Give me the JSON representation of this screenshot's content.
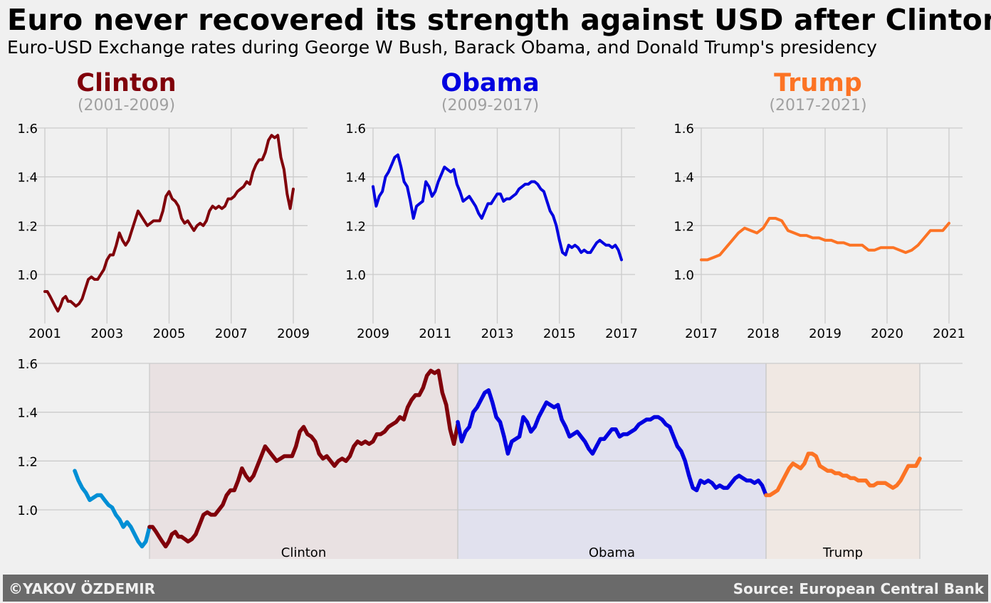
{
  "header": {
    "title": "Euro never recovered its strength against USD after Clinton",
    "subtitle": "Euro-USD Exchange rates during George W Bush, Barack Obama, and Donald Trump's presidency"
  },
  "footer": {
    "credit": "©YAKOV ÖZDEMIR",
    "source": "Source: European Central Bank"
  },
  "colors": {
    "background": "#f0f0f0",
    "grid": "#cbcbcb",
    "period_label": "#a0a0a0",
    "pre_period": "#008fd5",
    "footer_bg": "#6a6a6a"
  },
  "chart_data": [
    {
      "type": "line",
      "panel": "clinton",
      "title": "Clinton",
      "subtitle": "(2001-2009)",
      "color": "#80000a",
      "xlim": [
        2001,
        2009
      ],
      "ylim": [
        0.8,
        1.6
      ],
      "xticks": [
        2001,
        2003,
        2005,
        2007,
        2009
      ],
      "yticks": [
        1.0,
        1.2,
        1.4,
        1.6
      ],
      "x": [
        2001.0,
        2001.08,
        2001.17,
        2001.25,
        2001.33,
        2001.42,
        2001.5,
        2001.58,
        2001.67,
        2001.75,
        2001.83,
        2001.92,
        2002.0,
        2002.1,
        2002.2,
        2002.3,
        2002.4,
        2002.5,
        2002.6,
        2002.7,
        2002.8,
        2002.9,
        2003.0,
        2003.1,
        2003.2,
        2003.3,
        2003.4,
        2003.5,
        2003.6,
        2003.7,
        2003.8,
        2003.9,
        2004.0,
        2004.1,
        2004.2,
        2004.3,
        2004.4,
        2004.5,
        2004.6,
        2004.7,
        2004.8,
        2004.9,
        2005.0,
        2005.1,
        2005.2,
        2005.3,
        2005.4,
        2005.5,
        2005.6,
        2005.7,
        2005.8,
        2005.9,
        2006.0,
        2006.1,
        2006.2,
        2006.3,
        2006.4,
        2006.5,
        2006.6,
        2006.7,
        2006.8,
        2006.9,
        2007.0,
        2007.1,
        2007.2,
        2007.3,
        2007.4,
        2007.5,
        2007.6,
        2007.7,
        2007.8,
        2007.9,
        2008.0,
        2008.1,
        2008.2,
        2008.3,
        2008.4,
        2008.5,
        2008.6,
        2008.7,
        2008.8,
        2008.9,
        2009.0
      ],
      "y": [
        0.93,
        0.93,
        0.91,
        0.89,
        0.87,
        0.85,
        0.87,
        0.9,
        0.91,
        0.89,
        0.89,
        0.88,
        0.87,
        0.88,
        0.9,
        0.94,
        0.98,
        0.99,
        0.98,
        0.98,
        1.0,
        1.02,
        1.06,
        1.08,
        1.08,
        1.12,
        1.17,
        1.14,
        1.12,
        1.14,
        1.18,
        1.22,
        1.26,
        1.24,
        1.22,
        1.2,
        1.21,
        1.22,
        1.22,
        1.22,
        1.26,
        1.32,
        1.34,
        1.31,
        1.3,
        1.28,
        1.23,
        1.21,
        1.22,
        1.2,
        1.18,
        1.2,
        1.21,
        1.2,
        1.22,
        1.26,
        1.28,
        1.27,
        1.28,
        1.27,
        1.28,
        1.31,
        1.31,
        1.32,
        1.34,
        1.35,
        1.36,
        1.38,
        1.37,
        1.42,
        1.45,
        1.47,
        1.47,
        1.5,
        1.55,
        1.57,
        1.56,
        1.57,
        1.48,
        1.43,
        1.33,
        1.27,
        1.35
      ]
    },
    {
      "type": "line",
      "panel": "obama",
      "title": "Obama",
      "subtitle": "(2009-2017)",
      "color": "#0000e0",
      "xlim": [
        2009,
        2017
      ],
      "ylim": [
        0.8,
        1.6
      ],
      "xticks": [
        2009,
        2011,
        2013,
        2015,
        2017
      ],
      "yticks": [
        1.0,
        1.2,
        1.4,
        1.6
      ],
      "x": [
        2009.0,
        2009.1,
        2009.2,
        2009.3,
        2009.4,
        2009.5,
        2009.6,
        2009.7,
        2009.8,
        2009.9,
        2010.0,
        2010.1,
        2010.2,
        2010.3,
        2010.4,
        2010.5,
        2010.6,
        2010.7,
        2010.8,
        2010.9,
        2011.0,
        2011.1,
        2011.2,
        2011.3,
        2011.4,
        2011.5,
        2011.6,
        2011.7,
        2011.8,
        2011.9,
        2012.0,
        2012.1,
        2012.2,
        2012.3,
        2012.4,
        2012.5,
        2012.6,
        2012.7,
        2012.8,
        2012.9,
        2013.0,
        2013.1,
        2013.2,
        2013.3,
        2013.4,
        2013.5,
        2013.6,
        2013.7,
        2013.8,
        2013.9,
        2014.0,
        2014.1,
        2014.2,
        2014.3,
        2014.4,
        2014.5,
        2014.6,
        2014.7,
        2014.8,
        2014.9,
        2015.0,
        2015.1,
        2015.2,
        2015.3,
        2015.4,
        2015.5,
        2015.6,
        2015.7,
        2015.8,
        2015.9,
        2016.0,
        2016.1,
        2016.2,
        2016.3,
        2016.4,
        2016.5,
        2016.6,
        2016.7,
        2016.8,
        2016.9,
        2017.0
      ],
      "y": [
        1.36,
        1.28,
        1.32,
        1.34,
        1.4,
        1.42,
        1.45,
        1.48,
        1.49,
        1.44,
        1.38,
        1.36,
        1.3,
        1.23,
        1.28,
        1.29,
        1.3,
        1.38,
        1.36,
        1.32,
        1.34,
        1.38,
        1.41,
        1.44,
        1.43,
        1.42,
        1.43,
        1.37,
        1.34,
        1.3,
        1.31,
        1.32,
        1.3,
        1.28,
        1.25,
        1.23,
        1.26,
        1.29,
        1.29,
        1.31,
        1.33,
        1.33,
        1.3,
        1.31,
        1.31,
        1.32,
        1.33,
        1.35,
        1.36,
        1.37,
        1.37,
        1.38,
        1.38,
        1.37,
        1.35,
        1.34,
        1.3,
        1.26,
        1.24,
        1.2,
        1.14,
        1.09,
        1.08,
        1.12,
        1.11,
        1.12,
        1.11,
        1.09,
        1.1,
        1.09,
        1.09,
        1.11,
        1.13,
        1.14,
        1.13,
        1.12,
        1.12,
        1.11,
        1.12,
        1.1,
        1.06
      ]
    },
    {
      "type": "line",
      "panel": "trump",
      "title": "Trump",
      "subtitle": "(2017-2021)",
      "color": "#fc7324",
      "xlim": [
        2017,
        2021
      ],
      "ylim": [
        0.8,
        1.6
      ],
      "xticks": [
        2017,
        2018,
        2019,
        2020,
        2021
      ],
      "yticks": [
        1.0,
        1.2,
        1.4,
        1.6
      ],
      "x": [
        2017.0,
        2017.1,
        2017.2,
        2017.3,
        2017.4,
        2017.5,
        2017.6,
        2017.7,
        2017.8,
        2017.9,
        2018.0,
        2018.1,
        2018.2,
        2018.3,
        2018.4,
        2018.5,
        2018.6,
        2018.7,
        2018.8,
        2018.9,
        2019.0,
        2019.1,
        2019.2,
        2019.3,
        2019.4,
        2019.5,
        2019.6,
        2019.7,
        2019.8,
        2019.9,
        2020.0,
        2020.1,
        2020.2,
        2020.3,
        2020.4,
        2020.5,
        2020.6,
        2020.7,
        2020.8,
        2020.9,
        2021.0
      ],
      "y": [
        1.06,
        1.06,
        1.07,
        1.08,
        1.11,
        1.14,
        1.17,
        1.19,
        1.18,
        1.17,
        1.19,
        1.23,
        1.23,
        1.22,
        1.18,
        1.17,
        1.16,
        1.16,
        1.15,
        1.15,
        1.14,
        1.14,
        1.13,
        1.13,
        1.12,
        1.12,
        1.12,
        1.1,
        1.1,
        1.11,
        1.11,
        1.11,
        1.1,
        1.09,
        1.1,
        1.12,
        1.15,
        1.18,
        1.18,
        1.18,
        1.21
      ]
    },
    {
      "type": "line",
      "panel": "overall",
      "xlim": [
        1999,
        2021
      ],
      "ylim": [
        0.8,
        1.6
      ],
      "yticks": [
        1.0,
        1.2,
        1.4,
        1.6
      ],
      "spans": [
        {
          "label": "Clinton",
          "from": 2001,
          "to": 2009,
          "color": "#80000a"
        },
        {
          "label": "Obama",
          "from": 2009,
          "to": 2017,
          "color": "#0000e0"
        },
        {
          "label": "Trump",
          "from": 2017,
          "to": 2021,
          "color": "#fc7324"
        }
      ],
      "pre_series": {
        "color": "#008fd5",
        "x": [
          1999.0,
          1999.1,
          1999.2,
          1999.3,
          1999.4,
          1999.5,
          1999.6,
          1999.7,
          1999.8,
          1999.9,
          2000.0,
          2000.1,
          2000.2,
          2000.3,
          2000.4,
          2000.5,
          2000.6,
          2000.7,
          2000.8,
          2000.9,
          2001.0
        ],
        "y": [
          1.16,
          1.12,
          1.09,
          1.07,
          1.04,
          1.05,
          1.06,
          1.06,
          1.04,
          1.02,
          1.01,
          0.98,
          0.96,
          0.93,
          0.95,
          0.93,
          0.9,
          0.87,
          0.85,
          0.87,
          0.93
        ]
      }
    }
  ]
}
